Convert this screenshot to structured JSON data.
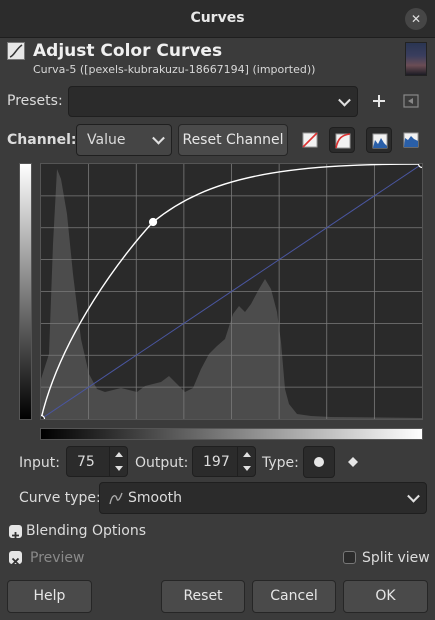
{
  "window": {
    "title": "Curves",
    "close_glyph": "✕"
  },
  "header": {
    "title": "Adjust Color Curves",
    "subtitle": "Curva-5 ([pexels-kubrakuzu-18667194] (imported))"
  },
  "presets": {
    "label": "Presets:",
    "value": ""
  },
  "channel": {
    "label": "Channel:",
    "value": "Value",
    "reset_label": "Reset Channel"
  },
  "point": {
    "input_label": "Input:",
    "input_value": "75",
    "output_label": "Output:",
    "output_value": "197",
    "type_label": "Type:"
  },
  "curve_type": {
    "label": "Curve type:",
    "value": "Smooth"
  },
  "blending": {
    "label": "Blending Options"
  },
  "preview": {
    "label": "Preview",
    "checked": true
  },
  "split_view": {
    "label": "Split view",
    "checked": false
  },
  "footer": {
    "help": "Help",
    "reset": "Reset",
    "cancel": "Cancel",
    "ok": "OK"
  },
  "curve": {
    "points": [
      [
        0,
        0
      ],
      [
        75,
        197
      ],
      [
        255,
        255
      ]
    ],
    "selected_point": [
      75,
      197
    ],
    "grid_divisions": 8
  },
  "colors": {
    "accent": "#ffffff",
    "diagonal": "#4a56a0",
    "histogram": "#4c4c4c",
    "grid": "#7a7a7a"
  }
}
